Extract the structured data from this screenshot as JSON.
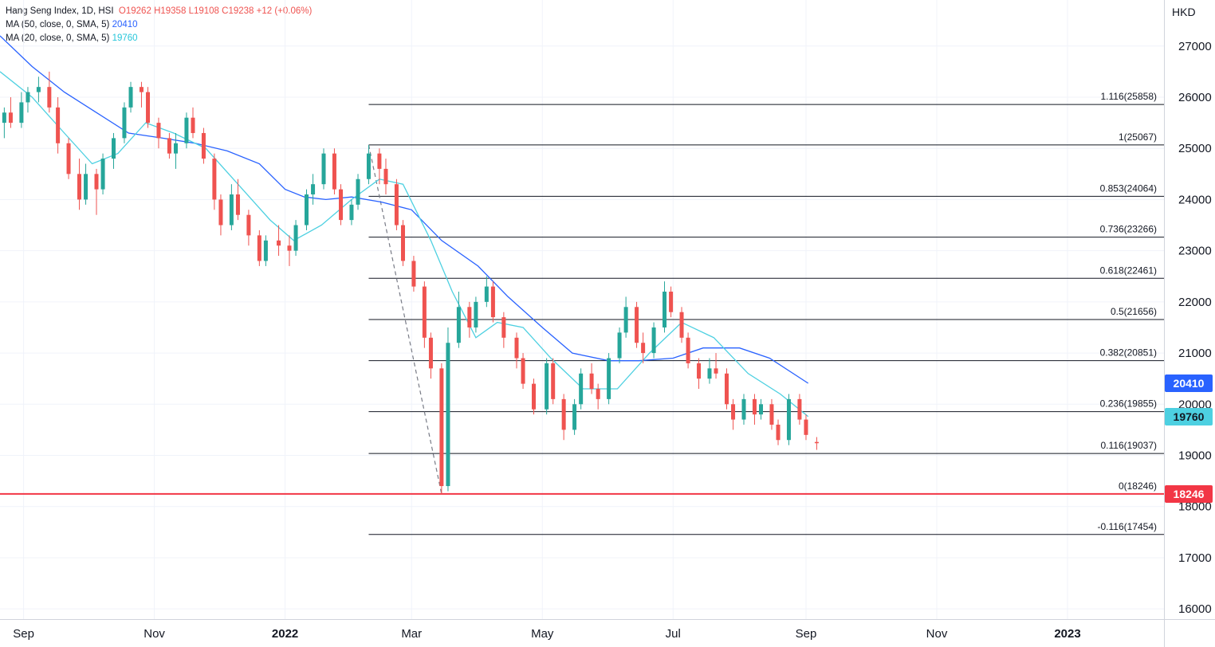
{
  "legend": {
    "symbol": "Hang Seng Index, 1D, HSI",
    "open": "O19262",
    "high": "H19358",
    "low": "L19108",
    "close": "C19238",
    "change": "+12 (+0.06%)",
    "ma50_label": "MA (50, close, 0, SMA, 5)",
    "ma50_value": "20410",
    "ma20_label": "MA (20, close, 0, SMA, 5)",
    "ma20_value": "19760"
  },
  "currency": "HKD",
  "price_tags": {
    "ma50": "20410",
    "ma20": "19760",
    "support": "18246"
  },
  "colors": {
    "up": "#26a69a",
    "down": "#ef5350",
    "ma50": "#2962ff",
    "ma20": "#4dd0e1",
    "grid": "#f0f3fa",
    "fib": "#131722",
    "support": "#f23645",
    "axis_text": "#131722"
  },
  "chart_data": {
    "type": "candlestick",
    "title": "Hang Seng Index, 1D, HSI",
    "ylim": [
      15800,
      27900
    ],
    "yticks": [
      16000,
      17000,
      18000,
      19000,
      20000,
      21000,
      22000,
      23000,
      24000,
      25000,
      26000,
      27000
    ],
    "xticks": [
      {
        "label": "Sep",
        "date": "2021-09-01",
        "bold": false
      },
      {
        "label": "Nov",
        "date": "2021-11-01",
        "bold": false
      },
      {
        "label": "2022",
        "date": "2022-01-01",
        "bold": true
      },
      {
        "label": "Mar",
        "date": "2022-03-01",
        "bold": false
      },
      {
        "label": "May",
        "date": "2022-05-01",
        "bold": false
      },
      {
        "label": "Jul",
        "date": "2022-07-01",
        "bold": false
      },
      {
        "label": "Sep",
        "date": "2022-09-01",
        "bold": false
      },
      {
        "label": "Nov",
        "date": "2022-11-01",
        "bold": false
      },
      {
        "label": "2023",
        "date": "2023-01-01",
        "bold": true
      }
    ],
    "xlim": [
      "2021-08-21",
      "2023-02-15"
    ],
    "candles": [
      {
        "d": "2021-08-23",
        "o": 25500,
        "h": 25800,
        "l": 25200,
        "c": 25700
      },
      {
        "d": "2021-08-26",
        "o": 25700,
        "h": 26000,
        "l": 25400,
        "c": 25500
      },
      {
        "d": "2021-08-31",
        "o": 25500,
        "h": 26100,
        "l": 25400,
        "c": 25900
      },
      {
        "d": "2021-09-03",
        "o": 25900,
        "h": 26200,
        "l": 25700,
        "c": 26100
      },
      {
        "d": "2021-09-08",
        "o": 26100,
        "h": 26400,
        "l": 25900,
        "c": 26200
      },
      {
        "d": "2021-09-13",
        "o": 26200,
        "h": 26500,
        "l": 25700,
        "c": 25800
      },
      {
        "d": "2021-09-17",
        "o": 25800,
        "h": 26000,
        "l": 24900,
        "c": 25100
      },
      {
        "d": "2021-09-22",
        "o": 25100,
        "h": 25200,
        "l": 24400,
        "c": 24500
      },
      {
        "d": "2021-09-27",
        "o": 24500,
        "h": 24800,
        "l": 23800,
        "c": 24000
      },
      {
        "d": "2021-09-30",
        "o": 24000,
        "h": 24700,
        "l": 23900,
        "c": 24500
      },
      {
        "d": "2021-10-05",
        "o": 24500,
        "h": 24600,
        "l": 23700,
        "c": 24200
      },
      {
        "d": "2021-10-08",
        "o": 24200,
        "h": 24900,
        "l": 24100,
        "c": 24800
      },
      {
        "d": "2021-10-13",
        "o": 24800,
        "h": 25300,
        "l": 24600,
        "c": 25200
      },
      {
        "d": "2021-10-18",
        "o": 25200,
        "h": 25900,
        "l": 25100,
        "c": 25800
      },
      {
        "d": "2021-10-21",
        "o": 25800,
        "h": 26300,
        "l": 25700,
        "c": 26200
      },
      {
        "d": "2021-10-26",
        "o": 26200,
        "h": 26300,
        "l": 25800,
        "c": 26100
      },
      {
        "d": "2021-10-29",
        "o": 26100,
        "h": 26200,
        "l": 25400,
        "c": 25500
      },
      {
        "d": "2021-11-03",
        "o": 25500,
        "h": 25600,
        "l": 25000,
        "c": 25200
      },
      {
        "d": "2021-11-08",
        "o": 25200,
        "h": 25300,
        "l": 24800,
        "c": 24900
      },
      {
        "d": "2021-11-11",
        "o": 24900,
        "h": 25300,
        "l": 24600,
        "c": 25100
      },
      {
        "d": "2021-11-16",
        "o": 25100,
        "h": 25700,
        "l": 25000,
        "c": 25600
      },
      {
        "d": "2021-11-19",
        "o": 25600,
        "h": 25800,
        "l": 25200,
        "c": 25300
      },
      {
        "d": "2021-11-24",
        "o": 25300,
        "h": 25400,
        "l": 24700,
        "c": 24800
      },
      {
        "d": "2021-11-29",
        "o": 24800,
        "h": 24900,
        "l": 23800,
        "c": 24000
      },
      {
        "d": "2021-12-02",
        "o": 24000,
        "h": 24100,
        "l": 23300,
        "c": 23500
      },
      {
        "d": "2021-12-07",
        "o": 23500,
        "h": 24300,
        "l": 23400,
        "c": 24100
      },
      {
        "d": "2021-12-10",
        "o": 24100,
        "h": 24400,
        "l": 23600,
        "c": 23700
      },
      {
        "d": "2021-12-15",
        "o": 23700,
        "h": 23800,
        "l": 23100,
        "c": 23300
      },
      {
        "d": "2021-12-20",
        "o": 23300,
        "h": 23400,
        "l": 22700,
        "c": 22800
      },
      {
        "d": "2021-12-23",
        "o": 22800,
        "h": 23300,
        "l": 22700,
        "c": 23200
      },
      {
        "d": "2021-12-29",
        "o": 23200,
        "h": 23500,
        "l": 22900,
        "c": 23100
      },
      {
        "d": "2022-01-03",
        "o": 23100,
        "h": 23300,
        "l": 22700,
        "c": 23000
      },
      {
        "d": "2022-01-06",
        "o": 23000,
        "h": 23600,
        "l": 22900,
        "c": 23500
      },
      {
        "d": "2022-01-11",
        "o": 23500,
        "h": 24200,
        "l": 23400,
        "c": 24100
      },
      {
        "d": "2022-01-14",
        "o": 24100,
        "h": 24500,
        "l": 23900,
        "c": 24300
      },
      {
        "d": "2022-01-19",
        "o": 24300,
        "h": 25000,
        "l": 24200,
        "c": 24900
      },
      {
        "d": "2022-01-24",
        "o": 24900,
        "h": 25000,
        "l": 24100,
        "c": 24200
      },
      {
        "d": "2022-01-27",
        "o": 24200,
        "h": 24300,
        "l": 23500,
        "c": 23600
      },
      {
        "d": "2022-02-01",
        "o": 23600,
        "h": 24000,
        "l": 23500,
        "c": 23900
      },
      {
        "d": "2022-02-04",
        "o": 23900,
        "h": 24500,
        "l": 23800,
        "c": 24400
      },
      {
        "d": "2022-02-09",
        "o": 24400,
        "h": 25067,
        "l": 24300,
        "c": 24900
      },
      {
        "d": "2022-02-14",
        "o": 24900,
        "h": 25000,
        "l": 24300,
        "c": 24600
      },
      {
        "d": "2022-02-17",
        "o": 24600,
        "h": 24800,
        "l": 24100,
        "c": 24300
      },
      {
        "d": "2022-02-22",
        "o": 24300,
        "h": 24400,
        "l": 23400,
        "c": 23500
      },
      {
        "d": "2022-02-25",
        "o": 23500,
        "h": 23600,
        "l": 22700,
        "c": 22800
      },
      {
        "d": "2022-03-02",
        "o": 22800,
        "h": 22900,
        "l": 22200,
        "c": 22300
      },
      {
        "d": "2022-03-07",
        "o": 22300,
        "h": 22400,
        "l": 21100,
        "c": 21300
      },
      {
        "d": "2022-03-10",
        "o": 21300,
        "h": 21400,
        "l": 20500,
        "c": 20700
      },
      {
        "d": "2022-03-15",
        "o": 20700,
        "h": 20800,
        "l": 18246,
        "c": 18400
      },
      {
        "d": "2022-03-18",
        "o": 18400,
        "h": 21500,
        "l": 18300,
        "c": 21200
      },
      {
        "d": "2022-03-23",
        "o": 21200,
        "h": 22200,
        "l": 21100,
        "c": 21900
      },
      {
        "d": "2022-03-28",
        "o": 21900,
        "h": 22000,
        "l": 21300,
        "c": 21500
      },
      {
        "d": "2022-03-31",
        "o": 21500,
        "h": 22100,
        "l": 21400,
        "c": 22000
      },
      {
        "d": "2022-04-05",
        "o": 22000,
        "h": 22500,
        "l": 21900,
        "c": 22300
      },
      {
        "d": "2022-04-08",
        "o": 22300,
        "h": 22400,
        "l": 21600,
        "c": 21700
      },
      {
        "d": "2022-04-13",
        "o": 21700,
        "h": 21800,
        "l": 21100,
        "c": 21300
      },
      {
        "d": "2022-04-19",
        "o": 21300,
        "h": 21400,
        "l": 20700,
        "c": 20900
      },
      {
        "d": "2022-04-22",
        "o": 20900,
        "h": 21000,
        "l": 20300,
        "c": 20400
      },
      {
        "d": "2022-04-27",
        "o": 20400,
        "h": 20500,
        "l": 19800,
        "c": 19900
      },
      {
        "d": "2022-05-03",
        "o": 19900,
        "h": 20900,
        "l": 19800,
        "c": 20800
      },
      {
        "d": "2022-05-06",
        "o": 20800,
        "h": 20900,
        "l": 20000,
        "c": 20100
      },
      {
        "d": "2022-05-11",
        "o": 20100,
        "h": 20200,
        "l": 19300,
        "c": 19500
      },
      {
        "d": "2022-05-16",
        "o": 19500,
        "h": 20100,
        "l": 19400,
        "c": 20000
      },
      {
        "d": "2022-05-19",
        "o": 20000,
        "h": 20700,
        "l": 19900,
        "c": 20600
      },
      {
        "d": "2022-05-24",
        "o": 20600,
        "h": 20800,
        "l": 20200,
        "c": 20300
      },
      {
        "d": "2022-05-27",
        "o": 20300,
        "h": 20400,
        "l": 19900,
        "c": 20100
      },
      {
        "d": "2022-06-01",
        "o": 20100,
        "h": 21000,
        "l": 20000,
        "c": 20900
      },
      {
        "d": "2022-06-06",
        "o": 20900,
        "h": 21500,
        "l": 20800,
        "c": 21400
      },
      {
        "d": "2022-06-09",
        "o": 21400,
        "h": 22100,
        "l": 21300,
        "c": 21900
      },
      {
        "d": "2022-06-14",
        "o": 21900,
        "h": 22000,
        "l": 21100,
        "c": 21200
      },
      {
        "d": "2022-06-17",
        "o": 21200,
        "h": 21400,
        "l": 20800,
        "c": 21000
      },
      {
        "d": "2022-06-22",
        "o": 21000,
        "h": 21600,
        "l": 20900,
        "c": 21500
      },
      {
        "d": "2022-06-27",
        "o": 21500,
        "h": 22400,
        "l": 21400,
        "c": 22200
      },
      {
        "d": "2022-06-30",
        "o": 22200,
        "h": 22300,
        "l": 21700,
        "c": 21800
      },
      {
        "d": "2022-07-05",
        "o": 21800,
        "h": 21900,
        "l": 21200,
        "c": 21300
      },
      {
        "d": "2022-07-08",
        "o": 21300,
        "h": 21400,
        "l": 20700,
        "c": 20800
      },
      {
        "d": "2022-07-13",
        "o": 20800,
        "h": 20900,
        "l": 20300,
        "c": 20500
      },
      {
        "d": "2022-07-18",
        "o": 20500,
        "h": 20900,
        "l": 20400,
        "c": 20700
      },
      {
        "d": "2022-07-21",
        "o": 20700,
        "h": 21000,
        "l": 20500,
        "c": 20600
      },
      {
        "d": "2022-07-26",
        "o": 20600,
        "h": 20700,
        "l": 19900,
        "c": 20000
      },
      {
        "d": "2022-07-29",
        "o": 20000,
        "h": 20100,
        "l": 19500,
        "c": 19700
      },
      {
        "d": "2022-08-03",
        "o": 19700,
        "h": 20200,
        "l": 19600,
        "c": 20100
      },
      {
        "d": "2022-08-08",
        "o": 20100,
        "h": 20200,
        "l": 19600,
        "c": 19800
      },
      {
        "d": "2022-08-11",
        "o": 19800,
        "h": 20100,
        "l": 19700,
        "c": 20000
      },
      {
        "d": "2022-08-16",
        "o": 20000,
        "h": 20100,
        "l": 19500,
        "c": 19600
      },
      {
        "d": "2022-08-19",
        "o": 19600,
        "h": 19700,
        "l": 19200,
        "c": 19300
      },
      {
        "d": "2022-08-24",
        "o": 19300,
        "h": 20200,
        "l": 19200,
        "c": 20100
      },
      {
        "d": "2022-08-29",
        "o": 20100,
        "h": 20200,
        "l": 19600,
        "c": 19700
      },
      {
        "d": "2022-09-01",
        "o": 19700,
        "h": 19800,
        "l": 19300,
        "c": 19400
      },
      {
        "d": "2022-09-06",
        "o": 19262,
        "h": 19358,
        "l": 19108,
        "c": 19238
      }
    ],
    "series": [
      {
        "name": "MA (50, close, 0, SMA, 5)",
        "color": "#2962ff",
        "points": [
          [
            "2021-08-21",
            27200
          ],
          [
            "2021-09-05",
            26600
          ],
          [
            "2021-09-20",
            26100
          ],
          [
            "2021-10-05",
            25700
          ],
          [
            "2021-10-20",
            25300
          ],
          [
            "2021-11-05",
            25200
          ],
          [
            "2021-11-20",
            25100
          ],
          [
            "2021-12-05",
            24950
          ],
          [
            "2021-12-20",
            24700
          ],
          [
            "2022-01-01",
            24200
          ],
          [
            "2022-01-10",
            24050
          ],
          [
            "2022-01-20",
            24000
          ],
          [
            "2022-02-01",
            24050
          ],
          [
            "2022-02-15",
            23950
          ],
          [
            "2022-03-01",
            23800
          ],
          [
            "2022-03-15",
            23200
          ],
          [
            "2022-04-01",
            22700
          ],
          [
            "2022-04-15",
            22100
          ],
          [
            "2022-05-01",
            21500
          ],
          [
            "2022-05-15",
            21000
          ],
          [
            "2022-06-01",
            20850
          ],
          [
            "2022-06-15",
            20850
          ],
          [
            "2022-07-01",
            20900
          ],
          [
            "2022-07-15",
            21100
          ],
          [
            "2022-08-01",
            21100
          ],
          [
            "2022-08-15",
            20900
          ],
          [
            "2022-09-02",
            20410
          ]
        ]
      },
      {
        "name": "MA (20, close, 0, SMA, 5)",
        "color": "#4dd0e1",
        "points": [
          [
            "2021-08-21",
            26500
          ],
          [
            "2021-09-05",
            26000
          ],
          [
            "2021-09-20",
            25300
          ],
          [
            "2021-10-03",
            24700
          ],
          [
            "2021-10-15",
            24900
          ],
          [
            "2021-10-28",
            25500
          ],
          [
            "2021-11-10",
            25300
          ],
          [
            "2021-11-25",
            25000
          ],
          [
            "2021-12-10",
            24300
          ],
          [
            "2021-12-25",
            23600
          ],
          [
            "2022-01-05",
            23200
          ],
          [
            "2022-01-18",
            23500
          ],
          [
            "2022-02-01",
            24000
          ],
          [
            "2022-02-14",
            24400
          ],
          [
            "2022-02-25",
            24300
          ],
          [
            "2022-03-10",
            23200
          ],
          [
            "2022-03-20",
            22200
          ],
          [
            "2022-03-31",
            21300
          ],
          [
            "2022-04-10",
            21600
          ],
          [
            "2022-04-22",
            21500
          ],
          [
            "2022-05-05",
            20900
          ],
          [
            "2022-05-20",
            20300
          ],
          [
            "2022-06-05",
            20300
          ],
          [
            "2022-06-20",
            21000
          ],
          [
            "2022-07-05",
            21600
          ],
          [
            "2022-07-20",
            21300
          ],
          [
            "2022-08-05",
            20600
          ],
          [
            "2022-08-20",
            20200
          ],
          [
            "2022-09-02",
            19760
          ]
        ]
      }
    ],
    "fib_levels": [
      {
        "label": "1.116(25858)",
        "value": 25858
      },
      {
        "label": "1(25067)",
        "value": 25067
      },
      {
        "label": "0.853(24064)",
        "value": 24064
      },
      {
        "label": "0.736(23266)",
        "value": 23266
      },
      {
        "label": "0.618(22461)",
        "value": 22461
      },
      {
        "label": "0.5(21656)",
        "value": 21656
      },
      {
        "label": "0.382(20851)",
        "value": 20851
      },
      {
        "label": "0.236(19855)",
        "value": 19855
      },
      {
        "label": "0.116(19037)",
        "value": 19037
      },
      {
        "label": "0(18246)",
        "value": 18246
      },
      {
        "label": "-0.116(17454)",
        "value": 17454
      }
    ],
    "fib_start_date": "2022-02-09",
    "fib_trend_line": [
      [
        "2022-02-09",
        25067
      ],
      [
        "2022-03-15",
        18246
      ]
    ],
    "support_line": 18246,
    "grid": true,
    "legend_position": "top-left"
  }
}
